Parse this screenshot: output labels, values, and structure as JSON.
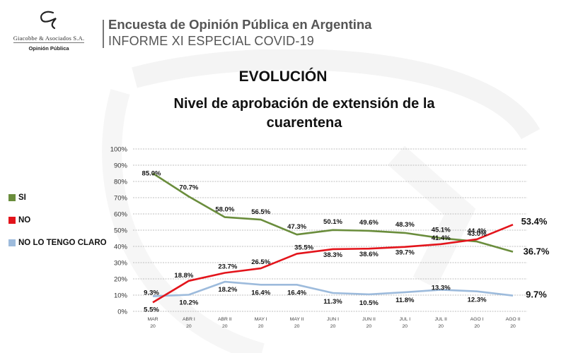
{
  "header": {
    "logo_firm": "Giacobbe & Asociados S.A.",
    "logo_sub": "Opinión Pública",
    "title": "Encuesta de Opinión Pública en Argentina",
    "subtitle": "INFORME XI ESPECIAL COVID-19"
  },
  "chart_data": {
    "type": "line",
    "title": "EVOLUCIÓN",
    "subtitle": "Nivel de aprobación de extensión de la cuarentena",
    "xlabel": "",
    "ylabel": "",
    "ylim": [
      0,
      100
    ],
    "yticks": [
      "0%",
      "10%",
      "20%",
      "30%",
      "40%",
      "50%",
      "60%",
      "70%",
      "80%",
      "90%",
      "100%"
    ],
    "grid": true,
    "legend_position": "left",
    "categories": [
      [
        "MAR",
        "20"
      ],
      [
        "ABR I",
        "20"
      ],
      [
        "ABR II",
        "20"
      ],
      [
        "MAY I",
        "20"
      ],
      [
        "MAY II",
        "20"
      ],
      [
        "JUN I",
        "20"
      ],
      [
        "JUN II",
        "20"
      ],
      [
        "JUL I",
        "20"
      ],
      [
        "JUL II",
        "20"
      ],
      [
        "AGO I",
        "20"
      ],
      [
        "AGO II",
        "20"
      ]
    ],
    "series": [
      {
        "name": "SI",
        "color": "#6a8d3c",
        "values": [
          85.0,
          70.7,
          58.0,
          56.5,
          47.3,
          50.1,
          49.6,
          48.3,
          45.1,
          43.0,
          36.7
        ],
        "labels": [
          "85.0%",
          "70.7%",
          "58.0%",
          "56.5%",
          "47.3%",
          "50.1%",
          "49.6%",
          "48.3%",
          "45.1%",
          "43.0%",
          "36.7%"
        ]
      },
      {
        "name": "NO",
        "color": "#e3141b",
        "values": [
          5.5,
          18.8,
          23.7,
          26.5,
          35.5,
          38.3,
          38.6,
          39.7,
          41.4,
          44.4,
          53.4
        ],
        "labels": [
          "5.5%",
          "18.8%",
          "23.7%",
          "26.5%",
          "35.5%",
          "38.3%",
          "38.6%",
          "39.7%",
          "41.4%",
          "44.4%",
          "53.4%"
        ]
      },
      {
        "name": "NO LO TENGO CLARO",
        "color": "#9dbbdc",
        "values": [
          9.3,
          10.2,
          18.2,
          16.4,
          16.4,
          11.3,
          10.5,
          11.8,
          13.3,
          12.3,
          9.7
        ],
        "labels": [
          "9.3%",
          "10.2%",
          "18.2%",
          "16.4%",
          "16.4%",
          "11.3%",
          "10.5%",
          "11.8%",
          "13.3%",
          "12.3%",
          "9.7%"
        ]
      }
    ]
  }
}
